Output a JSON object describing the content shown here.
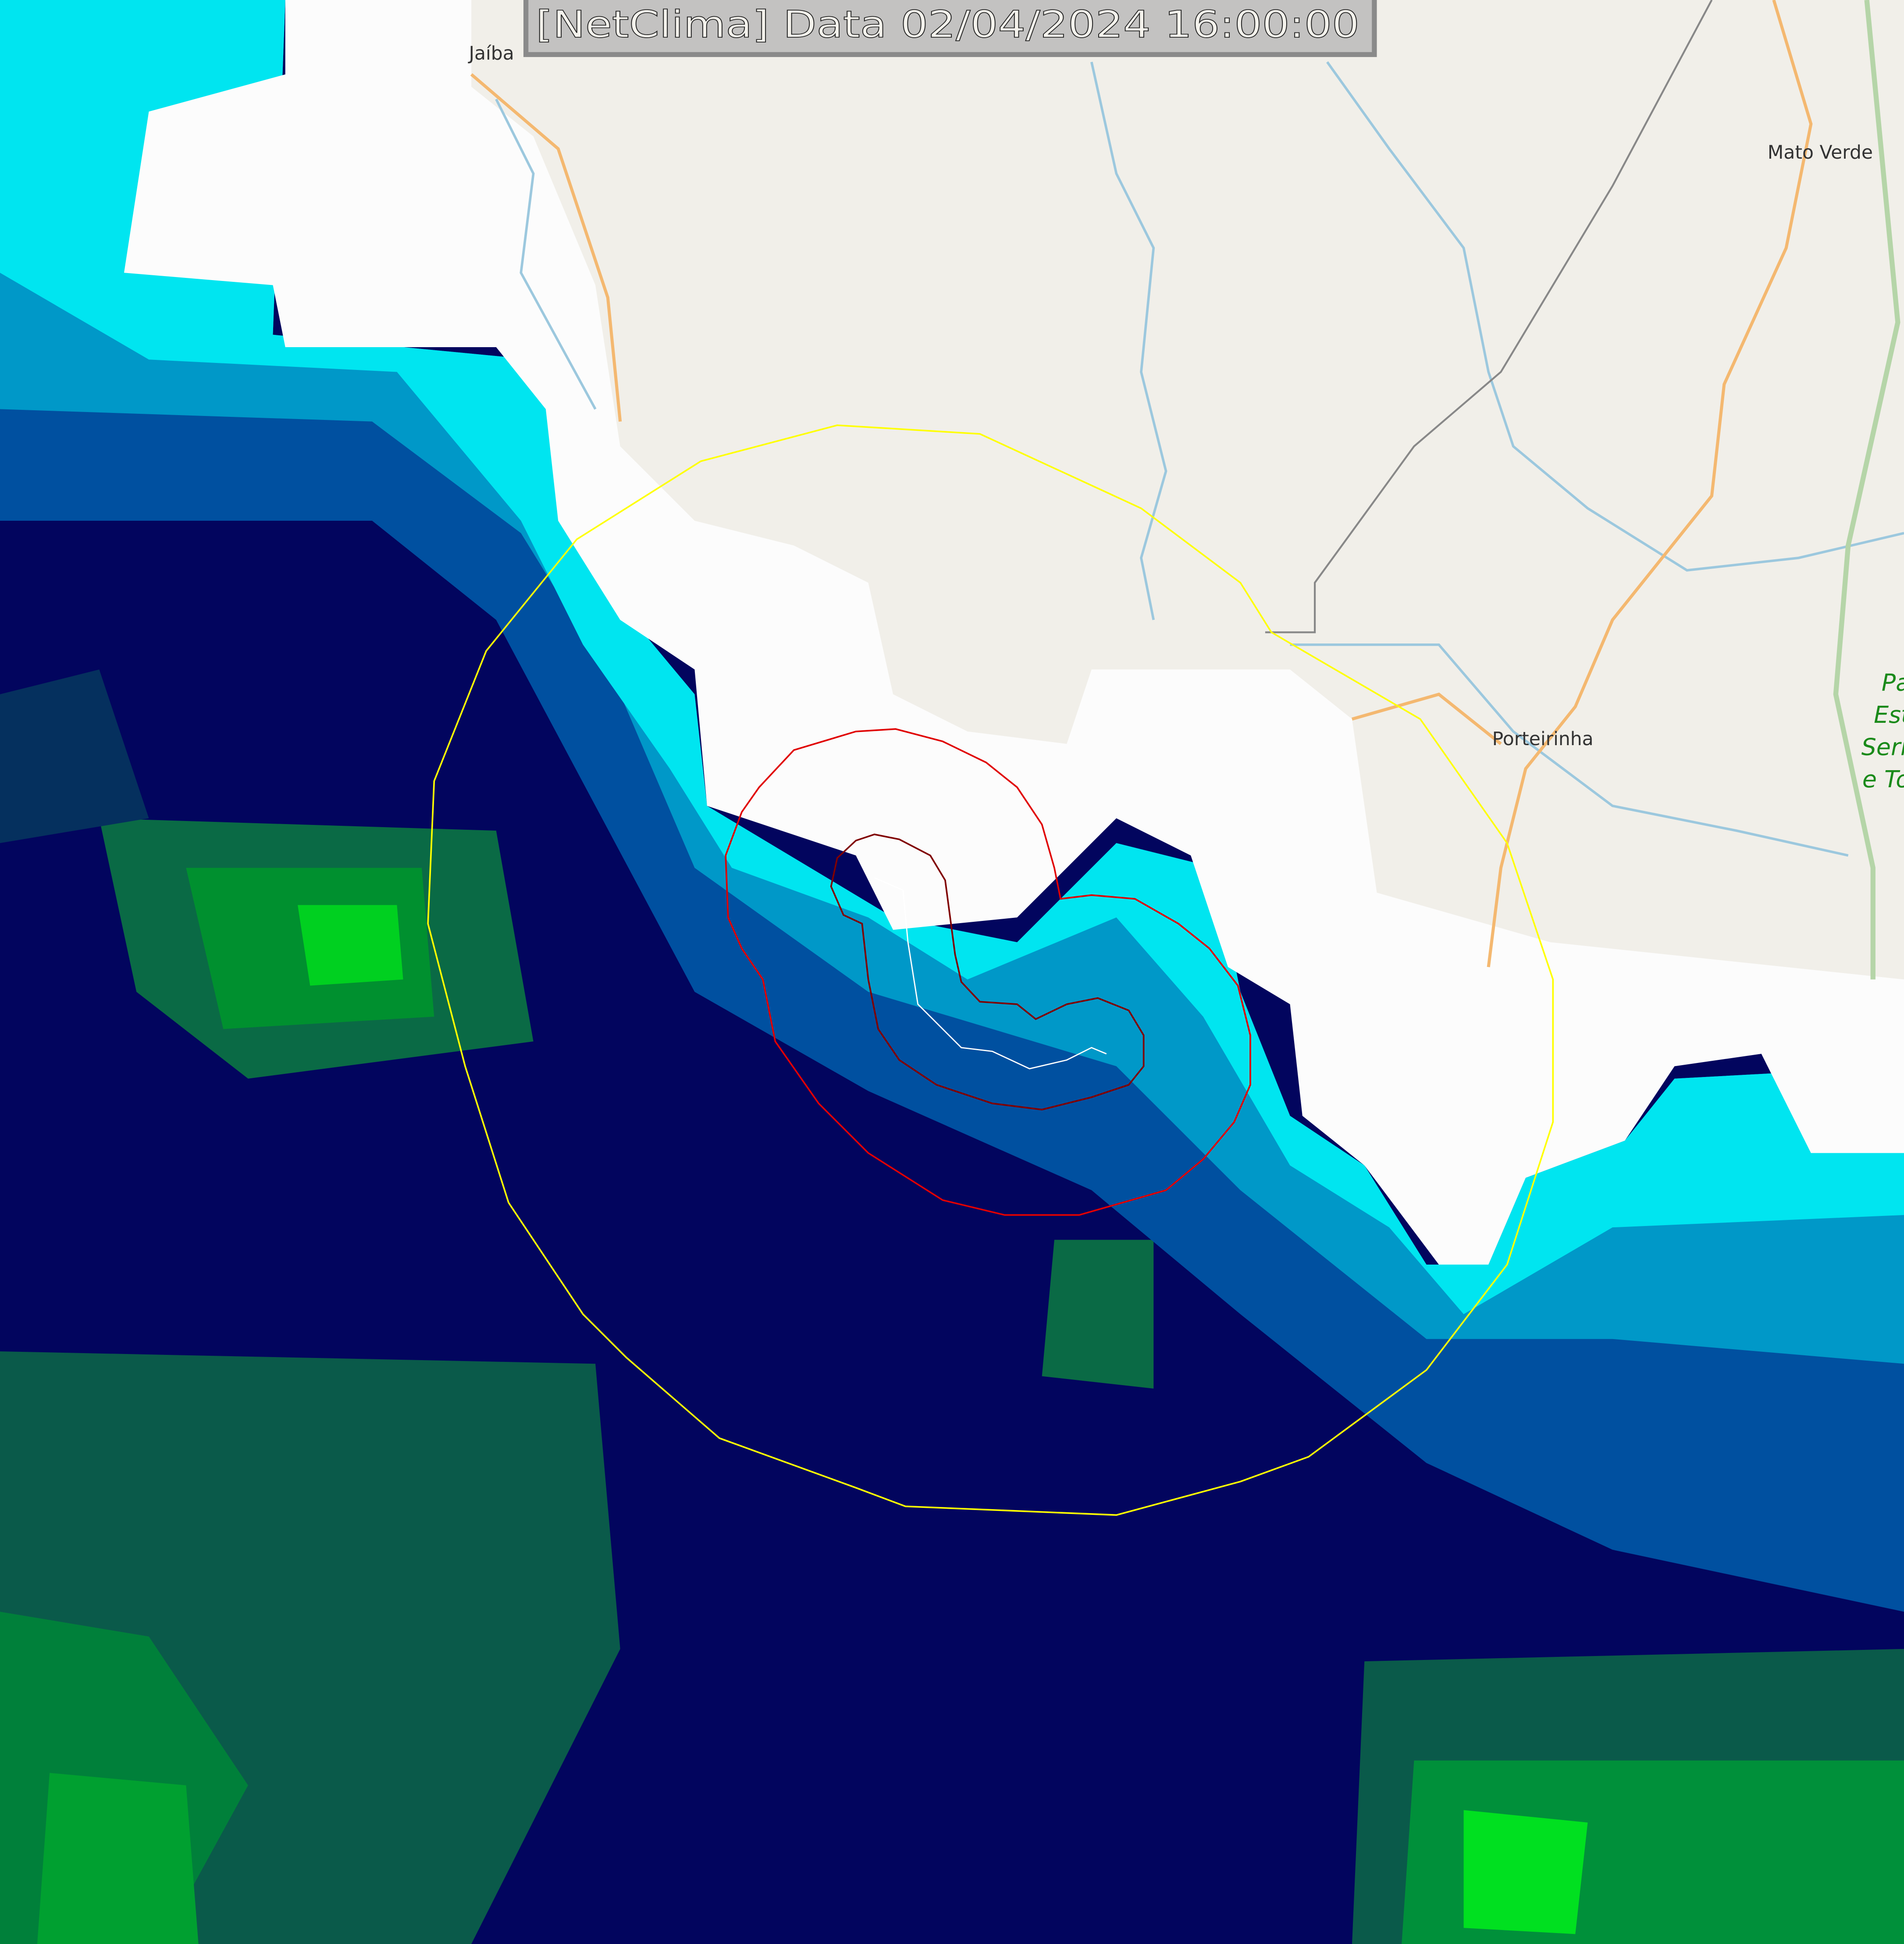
{
  "title_banner": "[NetClima] Data 02/04/2024 16:00:00",
  "places": {
    "jaiba": "Jaíba",
    "mato_verde": "Mato Verde",
    "porteirinha": "Porteirinha",
    "park_lines": [
      "Pa",
      "Est",
      "Serr",
      "e To"
    ]
  },
  "colors": {
    "map_land": "#f1efe9",
    "cloud_white": "#ffffff",
    "cyan": "#00e5f0",
    "blue": "#0060b0",
    "navy": "#02055e",
    "green": "#00a030",
    "ring_outer": "#ffff00",
    "ring_mid": "#e00000",
    "ring_inner": "#800000",
    "track": "#ffffff"
  }
}
